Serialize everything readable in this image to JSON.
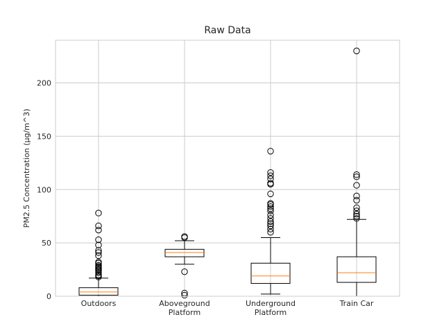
{
  "chart_data": {
    "type": "boxplot",
    "title": "Raw Data",
    "xlabel": "",
    "ylabel": "PM2.5 Concentration (μg/m^3)",
    "ylim": [
      0,
      240
    ],
    "yticks": [
      0,
      50,
      100,
      150,
      200
    ],
    "grid": true,
    "categories": [
      "Outdoors",
      "Aboveground\nPlatform",
      "Underground\nPlatform",
      "Train Car"
    ],
    "colors": {
      "box": "#000000",
      "median": "#ff7f0e",
      "grid": "#cccccc"
    },
    "boxes": [
      {
        "category": "Outdoors",
        "whisker_low": 0,
        "q1": 1,
        "median": 4,
        "q3": 8,
        "whisker_high": 17,
        "outliers": [
          18,
          19,
          20,
          22,
          24,
          25,
          26,
          27,
          28,
          29,
          31,
          32,
          38,
          41,
          43,
          48,
          53,
          62,
          66,
          78
        ]
      },
      {
        "category": "Aboveground Platform",
        "whisker_low": 30,
        "q1": 37,
        "median": 41,
        "q3": 44,
        "whisker_high": 52,
        "outliers": [
          1,
          3,
          23,
          55,
          56
        ]
      },
      {
        "category": "Underground Platform",
        "whisker_low": 2,
        "q1": 12,
        "median": 19,
        "q3": 31,
        "whisker_high": 55,
        "outliers": [
          60,
          63,
          66,
          68,
          70,
          73,
          76,
          80,
          82,
          84,
          86,
          87,
          96,
          105,
          106,
          110,
          113,
          116,
          136
        ]
      },
      {
        "category": "Train Car",
        "whisker_low": 0,
        "q1": 13,
        "median": 22,
        "q3": 37,
        "whisker_high": 72,
        "outliers": [
          73,
          75,
          77,
          80,
          83,
          90,
          94,
          104,
          112,
          114,
          230
        ]
      }
    ]
  }
}
